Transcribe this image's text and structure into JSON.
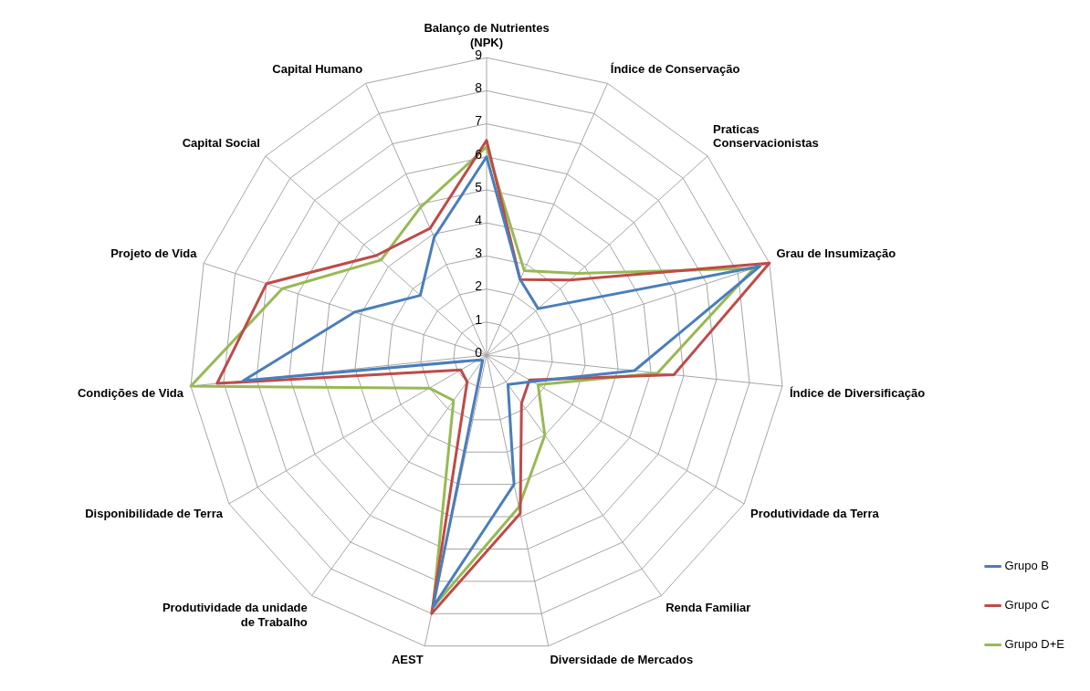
{
  "chart_data": {
    "type": "radar",
    "categories": [
      "Balanço de Nutrientes (NPK)",
      "Índice de Conservação",
      "Praticas Conservacionistas",
      "Grau de Insumização",
      "Índice de Diversificação",
      "Produtividade da Terra",
      "Renda Familiar",
      "Diversidade de Mercados",
      "AEST",
      "Produtividade da unidade de Trabalho",
      "Disponibilidade de Terra",
      "Condições de Vida",
      "Projeto de Vida",
      "Capital Social",
      "Capital Humano"
    ],
    "series": [
      {
        "name": "Grupo B",
        "color": "#4a7ebb",
        "values": [
          6.0,
          2.5,
          2.1,
          8.7,
          4.5,
          1.6,
          1.1,
          4.0,
          7.8,
          0.2,
          0.3,
          7.4,
          4.2,
          2.7,
          3.9
        ]
      },
      {
        "name": "Grupo C",
        "color": "#be4b48",
        "values": [
          6.5,
          2.5,
          3.4,
          9.0,
          5.7,
          1.5,
          1.8,
          4.9,
          8.0,
          1.0,
          0.9,
          8.2,
          7.0,
          4.5,
          4.2
        ]
      },
      {
        "name": "Grupo D+E",
        "color": "#98b954",
        "values": [
          6.3,
          2.8,
          3.7,
          8.5,
          5.2,
          1.8,
          3.0,
          4.7,
          7.8,
          1.7,
          2.0,
          9.0,
          6.5,
          4.3,
          4.9
        ]
      }
    ],
    "ylim": [
      0,
      9
    ],
    "yticks": [
      0,
      1,
      2,
      3,
      4,
      5,
      6,
      7,
      8,
      9
    ],
    "grid": true,
    "legend": "bottom right",
    "marker": "none",
    "line_style": "solid"
  }
}
